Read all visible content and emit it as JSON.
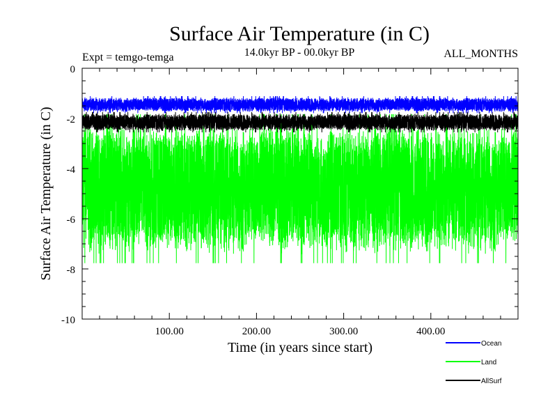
{
  "chart_data": {
    "type": "line",
    "title": "Surface Air Temperature (in C)",
    "subtitle": "14.0kyr BP - 00.0kyr BP",
    "experiment_label": "Expt = temgo-temga",
    "months_label": "ALL_MONTHS",
    "xlabel": "Time (in years since start)",
    "ylabel": "Surface Air Temperature (in C)",
    "xlim": [
      0,
      500
    ],
    "ylim": [
      -10,
      0
    ],
    "x_ticks": [
      {
        "value": 100,
        "label": "100.00"
      },
      {
        "value": 200,
        "label": "200.00"
      },
      {
        "value": 300,
        "label": "300.00"
      },
      {
        "value": 400,
        "label": "400.00"
      }
    ],
    "y_ticks": [
      {
        "value": 0,
        "label": "0"
      },
      {
        "value": -2,
        "label": "-2"
      },
      {
        "value": -4,
        "label": "-4"
      },
      {
        "value": -6,
        "label": "-6"
      },
      {
        "value": -8,
        "label": "-8"
      },
      {
        "value": -10,
        "label": "-10"
      }
    ],
    "series": [
      {
        "name": "Land",
        "color": "#00ff00",
        "mean": -4.8,
        "max_upper": -1.6,
        "min_lower": -8.1,
        "spread": 2.2
      },
      {
        "name": "AllSurf",
        "color": "#000000",
        "mean": -2.15,
        "max_upper": -1.5,
        "min_lower": -2.8,
        "spread": 0.3
      },
      {
        "name": "Ocean",
        "color": "#0000ff",
        "mean": -1.45,
        "max_upper": -0.6,
        "min_lower": -2.1,
        "spread": 0.25
      }
    ],
    "legend": [
      {
        "name": "Ocean",
        "color": "#0000ff"
      },
      {
        "name": "Land",
        "color": "#00ff00"
      },
      {
        "name": "AllSurf",
        "color": "#000000"
      }
    ]
  }
}
